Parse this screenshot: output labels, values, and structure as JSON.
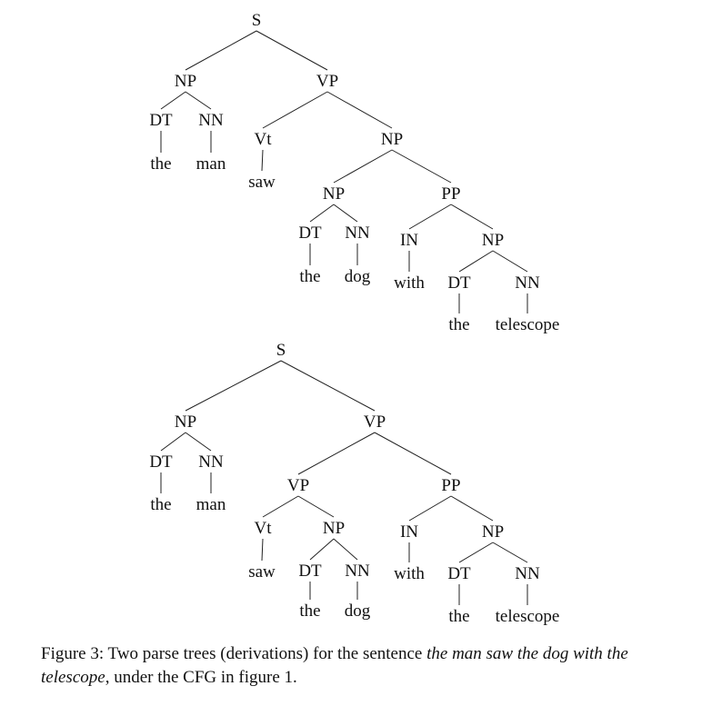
{
  "trees": [
    {
      "nodes": [
        {
          "id": "s",
          "label": "S"
        },
        {
          "id": "np1",
          "label": "NP"
        },
        {
          "id": "vp",
          "label": "VP"
        },
        {
          "id": "dt1",
          "label": "DT"
        },
        {
          "id": "nn1",
          "label": "NN"
        },
        {
          "id": "the1",
          "label": "the"
        },
        {
          "id": "man",
          "label": "man"
        },
        {
          "id": "vt",
          "label": "Vt"
        },
        {
          "id": "saw",
          "label": "saw"
        },
        {
          "id": "np2",
          "label": "NP"
        },
        {
          "id": "np3",
          "label": "NP"
        },
        {
          "id": "pp",
          "label": "PP"
        },
        {
          "id": "dt2",
          "label": "DT"
        },
        {
          "id": "nn2",
          "label": "NN"
        },
        {
          "id": "the2",
          "label": "the"
        },
        {
          "id": "dog",
          "label": "dog"
        },
        {
          "id": "in",
          "label": "IN"
        },
        {
          "id": "with",
          "label": "with"
        },
        {
          "id": "np4",
          "label": "NP"
        },
        {
          "id": "dt3",
          "label": "DT"
        },
        {
          "id": "nn3",
          "label": "NN"
        },
        {
          "id": "the3",
          "label": "the"
        },
        {
          "id": "tel",
          "label": "telescope"
        }
      ],
      "edges": [
        [
          "s",
          "np1"
        ],
        [
          "s",
          "vp"
        ],
        [
          "np1",
          "dt1"
        ],
        [
          "np1",
          "nn1"
        ],
        [
          "dt1",
          "the1"
        ],
        [
          "nn1",
          "man"
        ],
        [
          "vp",
          "vt"
        ],
        [
          "vp",
          "np2"
        ],
        [
          "vt",
          "saw"
        ],
        [
          "np2",
          "np3"
        ],
        [
          "np2",
          "pp"
        ],
        [
          "np3",
          "dt2"
        ],
        [
          "np3",
          "nn2"
        ],
        [
          "dt2",
          "the2"
        ],
        [
          "nn2",
          "dog"
        ],
        [
          "pp",
          "in"
        ],
        [
          "pp",
          "np4"
        ],
        [
          "in",
          "with"
        ],
        [
          "np4",
          "dt3"
        ],
        [
          "np4",
          "nn3"
        ],
        [
          "dt3",
          "the3"
        ],
        [
          "nn3",
          "tel"
        ]
      ]
    },
    {
      "nodes": [
        {
          "id": "s",
          "label": "S"
        },
        {
          "id": "np1",
          "label": "NP"
        },
        {
          "id": "vp",
          "label": "VP"
        },
        {
          "id": "dt1",
          "label": "DT"
        },
        {
          "id": "nn1",
          "label": "NN"
        },
        {
          "id": "the1",
          "label": "the"
        },
        {
          "id": "man",
          "label": "man"
        },
        {
          "id": "vp2",
          "label": "VP"
        },
        {
          "id": "pp",
          "label": "PP"
        },
        {
          "id": "vt",
          "label": "Vt"
        },
        {
          "id": "np2",
          "label": "NP"
        },
        {
          "id": "saw",
          "label": "saw"
        },
        {
          "id": "dt2",
          "label": "DT"
        },
        {
          "id": "nn2",
          "label": "NN"
        },
        {
          "id": "the2",
          "label": "the"
        },
        {
          "id": "dog",
          "label": "dog"
        },
        {
          "id": "in",
          "label": "IN"
        },
        {
          "id": "with",
          "label": "with"
        },
        {
          "id": "np4",
          "label": "NP"
        },
        {
          "id": "dt3",
          "label": "DT"
        },
        {
          "id": "nn3",
          "label": "NN"
        },
        {
          "id": "the3",
          "label": "the"
        },
        {
          "id": "tel",
          "label": "telescope"
        }
      ],
      "edges": [
        [
          "s",
          "np1"
        ],
        [
          "s",
          "vp"
        ],
        [
          "np1",
          "dt1"
        ],
        [
          "np1",
          "nn1"
        ],
        [
          "dt1",
          "the1"
        ],
        [
          "nn1",
          "man"
        ],
        [
          "vp",
          "vp2"
        ],
        [
          "vp",
          "pp"
        ],
        [
          "vp2",
          "vt"
        ],
        [
          "vp2",
          "np2"
        ],
        [
          "vt",
          "saw"
        ],
        [
          "np2",
          "dt2"
        ],
        [
          "np2",
          "nn2"
        ],
        [
          "dt2",
          "the2"
        ],
        [
          "nn2",
          "dog"
        ],
        [
          "pp",
          "in"
        ],
        [
          "pp",
          "np4"
        ],
        [
          "in",
          "with"
        ],
        [
          "np4",
          "dt3"
        ],
        [
          "np4",
          "nn3"
        ],
        [
          "dt3",
          "the3"
        ],
        [
          "nn3",
          "tel"
        ]
      ]
    }
  ],
  "caption": {
    "prefix": "Figure 3: Two parse trees (derivations) for the sentence ",
    "sentence": "the man saw the dog with the telescope",
    "suffix": ", under the CFG in figure 1."
  }
}
